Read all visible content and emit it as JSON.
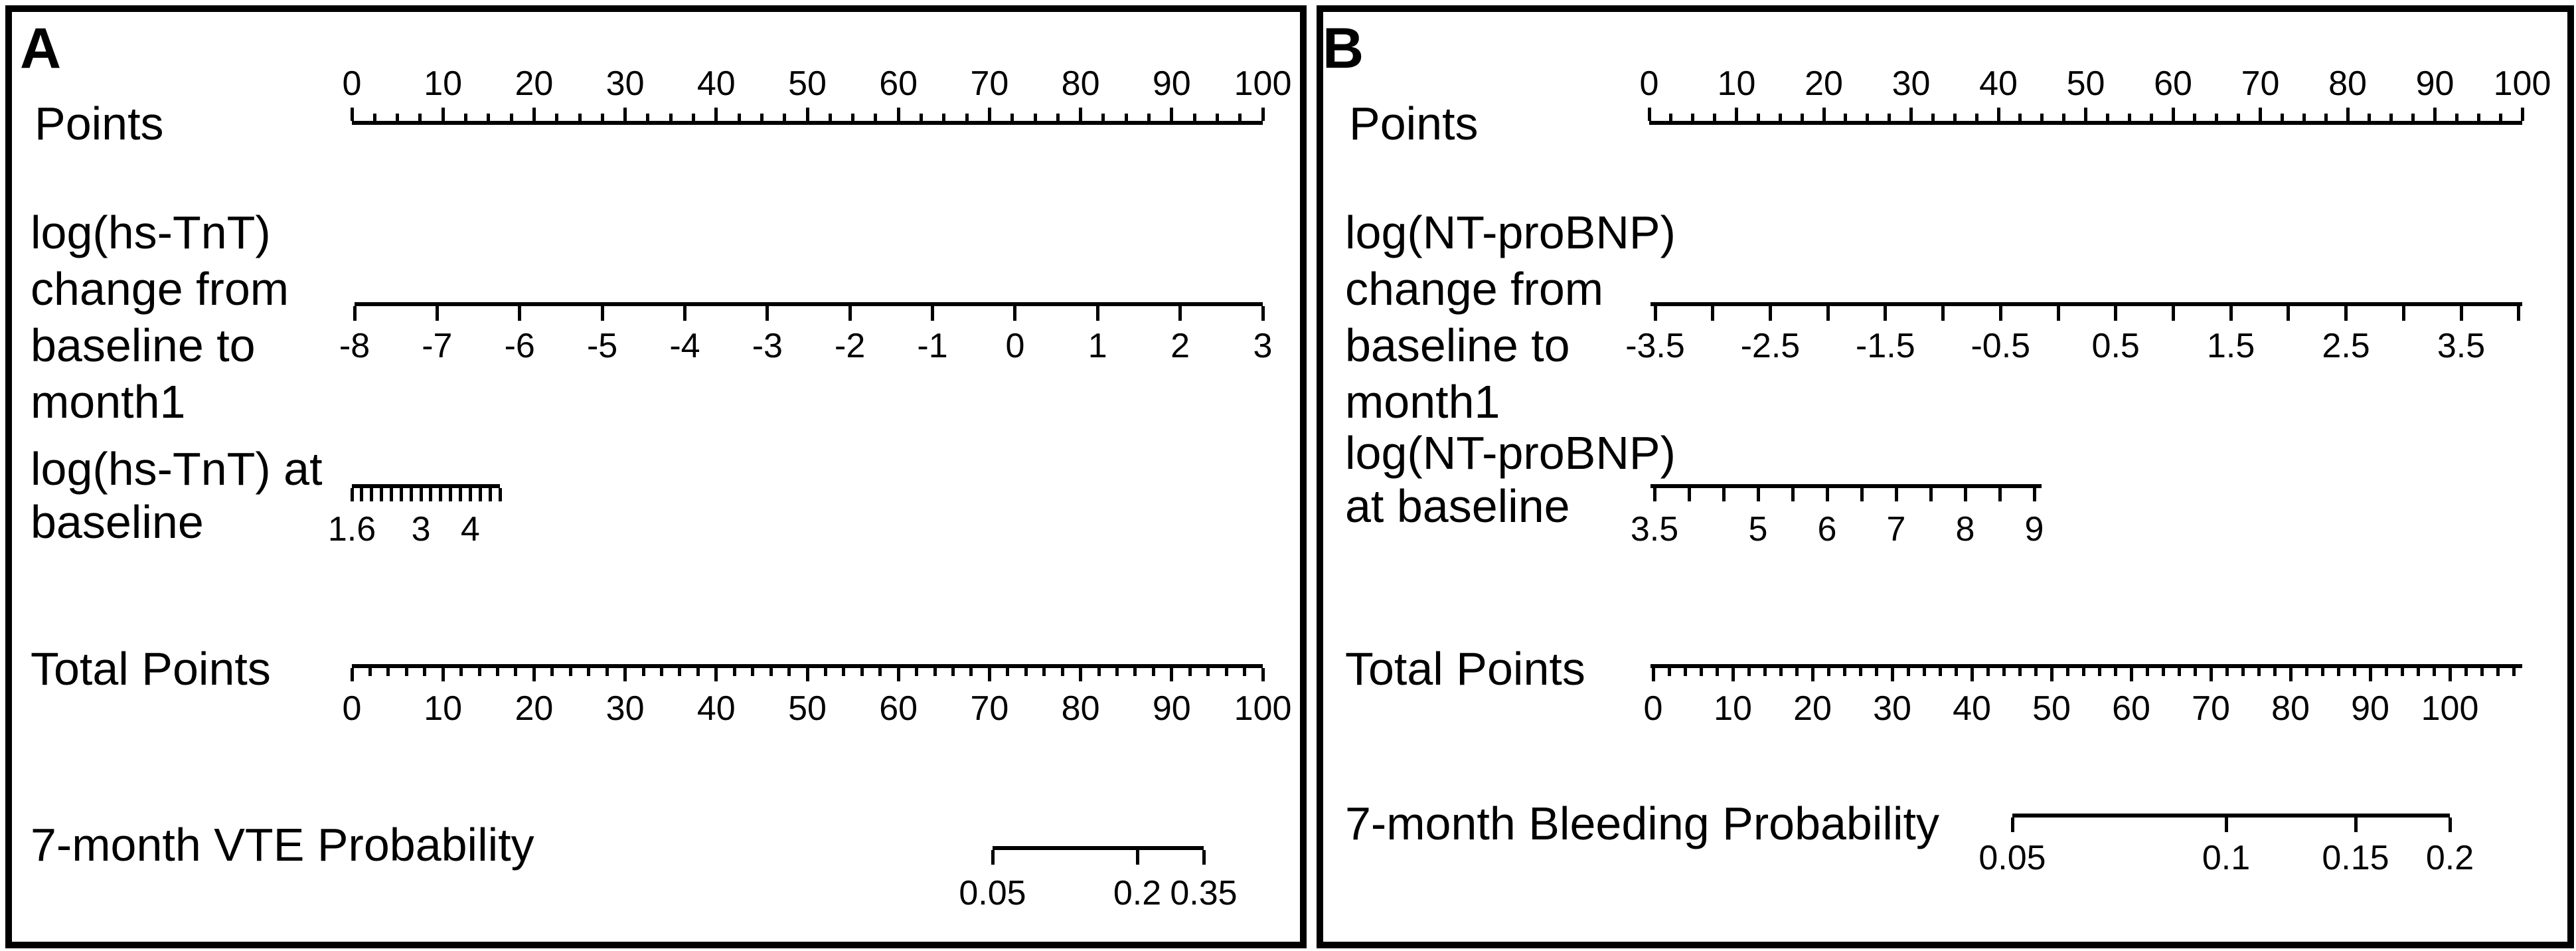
{
  "ink_color": "#000000",
  "background_color": "#ffffff",
  "chart_data": [
    {
      "type": "nomogram",
      "panel_label": "A",
      "outcome": "7-month VTE Probability",
      "scales": [
        {
          "name": "points",
          "label": "Points",
          "label_lines": [
            "Points"
          ],
          "axis_range": [
            0,
            100
          ],
          "tick_values": [
            0,
            10,
            20,
            30,
            40,
            50,
            60,
            70,
            80,
            90,
            100
          ],
          "tick_labels": [
            "0",
            "10",
            "20",
            "30",
            "40",
            "50",
            "60",
            "70",
            "80",
            "90",
            "100"
          ],
          "minor_tick_interval": 2.5,
          "tick_side": "above",
          "tick_labels_position": "above"
        },
        {
          "name": "log_hs_tnt_change",
          "label": "log(hs-TnT) change from baseline to month1",
          "label_lines": [
            "log(hs-TnT)",
            "change from",
            "baseline to",
            "month1"
          ],
          "axis_range": [
            -8,
            3
          ],
          "tick_values": [
            -8,
            -7,
            -6,
            -5,
            -4,
            -3,
            -2,
            -1,
            0,
            1,
            2,
            3
          ],
          "tick_labels": [
            "-8",
            "-7",
            "-6",
            "-5",
            "-4",
            "-3",
            "-2",
            "-1",
            "0",
            "1",
            "2",
            "3"
          ],
          "minor_tick_interval": 1,
          "tick_side": "below",
          "tick_labels_position": "below"
        },
        {
          "name": "log_hs_tnt_baseline",
          "label": "log(hs-TnT) at baseline",
          "label_lines": [
            "log(hs-TnT) at",
            "baseline"
          ],
          "axis_range": [
            1.6,
            4.6
          ],
          "tick_values": [
            1.6,
            3,
            4
          ],
          "tick_labels": [
            "1.6",
            "3",
            "4"
          ],
          "minor_tick_interval": 0.2,
          "tick_side": "below",
          "tick_labels_position": "below"
        },
        {
          "name": "total_points",
          "label": "Total Points",
          "label_lines": [
            "Total Points"
          ],
          "axis_range": [
            0,
            100
          ],
          "tick_values": [
            0,
            10,
            20,
            30,
            40,
            50,
            60,
            70,
            80,
            90,
            100
          ],
          "tick_labels": [
            "0",
            "10",
            "20",
            "30",
            "40",
            "50",
            "60",
            "70",
            "80",
            "90",
            "100"
          ],
          "minor_tick_interval": 2,
          "tick_side": "below",
          "tick_labels_position": "below"
        },
        {
          "name": "vte_probability",
          "label": "7-month VTE Probability",
          "label_lines": [
            "7-month VTE Probability"
          ],
          "scale_type": "nonlinear-probability",
          "axis_range": [
            0.05,
            0.35
          ],
          "tick_values": [
            0.05,
            0.2,
            0.35
          ],
          "tick_labels": [
            "0.05",
            "0.2",
            "0.35"
          ],
          "tick_side": "below",
          "tick_labels_position": "below"
        }
      ]
    },
    {
      "type": "nomogram",
      "panel_label": "B",
      "outcome": "7-month Bleeding Probability",
      "scales": [
        {
          "name": "points",
          "label": "Points",
          "label_lines": [
            "Points"
          ],
          "axis_range": [
            0,
            100
          ],
          "tick_values": [
            0,
            10,
            20,
            30,
            40,
            50,
            60,
            70,
            80,
            90,
            100
          ],
          "tick_labels": [
            "0",
            "10",
            "20",
            "30",
            "40",
            "50",
            "60",
            "70",
            "80",
            "90",
            "100"
          ],
          "minor_tick_interval": 2.5,
          "tick_side": "above",
          "tick_labels_position": "above"
        },
        {
          "name": "log_nt_probnp_change",
          "label": "log(NT-proBNP) change from baseline to month1",
          "label_lines": [
            "log(NT-proBNP)",
            "change from",
            "baseline to",
            "month1"
          ],
          "axis_range": [
            -3.5,
            4
          ],
          "tick_values": [
            -3.5,
            -2.5,
            -1.5,
            -0.5,
            0.5,
            1.5,
            2.5,
            3.5
          ],
          "tick_labels": [
            "-3.5",
            "-2.5",
            "-1.5",
            "-0.5",
            "0.5",
            "1.5",
            "2.5",
            "3.5"
          ],
          "minor_tick_interval": 0.5,
          "tick_side": "below",
          "tick_labels_position": "below"
        },
        {
          "name": "log_nt_probnp_baseline",
          "label": "log(NT-proBNP) at baseline",
          "label_lines": [
            "log(NT-proBNP)",
            "at baseline"
          ],
          "axis_range": [
            3.5,
            9
          ],
          "tick_values": [
            3.5,
            5,
            6,
            7,
            8,
            9
          ],
          "tick_labels": [
            "3.5",
            "5",
            "6",
            "7",
            "8",
            "9"
          ],
          "minor_tick_interval": 0.5,
          "tick_side": "below",
          "tick_labels_position": "below"
        },
        {
          "name": "total_points",
          "label": "Total Points",
          "label_lines": [
            "Total Points"
          ],
          "axis_range": [
            0,
            108
          ],
          "tick_values": [
            0,
            10,
            20,
            30,
            40,
            50,
            60,
            70,
            80,
            90,
            100
          ],
          "tick_labels": [
            "0",
            "10",
            "20",
            "30",
            "40",
            "50",
            "60",
            "70",
            "80",
            "90",
            "100"
          ],
          "minor_tick_interval": 2,
          "tick_side": "below",
          "tick_labels_position": "below"
        },
        {
          "name": "bleeding_probability",
          "label": "7-month Bleeding Probability",
          "label_lines": [
            "7-month Bleeding Probability"
          ],
          "scale_type": "nonlinear-probability",
          "axis_range": [
            0.05,
            0.2
          ],
          "tick_values": [
            0.05,
            0.1,
            0.15,
            0.2
          ],
          "tick_labels": [
            "0.05",
            "0.1",
            "0.15",
            "0.2"
          ],
          "tick_side": "below",
          "tick_labels_position": "below"
        }
      ]
    }
  ]
}
